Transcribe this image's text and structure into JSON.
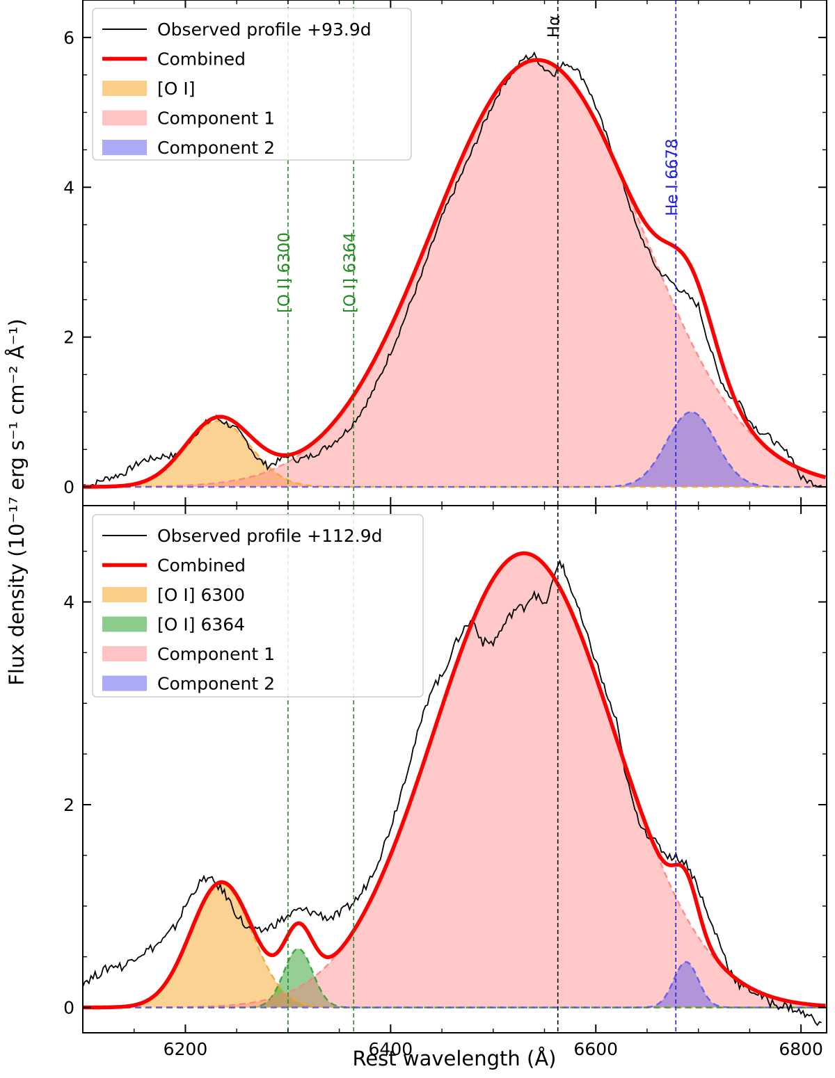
{
  "figure": {
    "xlabel": "Rest wavelength (Å)",
    "ylabel": "Flux density (10⁻¹⁷ erg s⁻¹ cm⁻² Å⁻¹)"
  },
  "colors": {
    "observed": "#000000",
    "combined": "#ff0000",
    "oi": "#f5a623",
    "oi6364": "#2ca02c",
    "comp1": "#ff7f7f",
    "comp2": "#5555ee",
    "ann_oi": "#228b22",
    "ann_h": "#000000",
    "ann_he": "#2222dd"
  },
  "chart_data": [
    {
      "type": "line",
      "panel": "top",
      "xlim": [
        6100,
        6825
      ],
      "ylim": [
        -0.25,
        6.5
      ],
      "xticks": [
        6200,
        6400,
        6600,
        6800
      ],
      "xtick_labels": [
        "6200",
        "6400",
        "6600",
        "6800"
      ],
      "yticks": [
        0,
        2,
        4,
        6
      ],
      "ytick_labels": [
        "0",
        "2",
        "4",
        "6"
      ],
      "legend": [
        "Observed profile +93.9d",
        "Combined",
        "[O I]",
        "Component 1",
        "Component 2"
      ],
      "annotations": [
        {
          "x": 6300,
          "label": "[O I] 6300",
          "kind": "oi"
        },
        {
          "x": 6364,
          "label": "[O I] 6364",
          "kind": "oi"
        },
        {
          "x": 6563,
          "label": "Hα",
          "kind": "h"
        },
        {
          "x": 6678,
          "label": "He I 6678",
          "kind": "he"
        }
      ],
      "components": [
        {
          "name": "[O I]",
          "kind": "oi",
          "amp": 0.88,
          "center": 6232,
          "sigma": 32
        },
        {
          "name": "Component 1",
          "kind": "comp1",
          "amp": 5.7,
          "center": 6543,
          "sigma": 102
        },
        {
          "name": "Component 2",
          "kind": "comp2",
          "amp": 1.0,
          "center": 6693,
          "sigma": 24
        }
      ],
      "observed": {
        "x": [
          6100,
          6110,
          6120,
          6130,
          6140,
          6150,
          6160,
          6170,
          6180,
          6190,
          6200,
          6210,
          6220,
          6230,
          6240,
          6250,
          6260,
          6270,
          6280,
          6290,
          6300,
          6310,
          6320,
          6330,
          6340,
          6350,
          6360,
          6370,
          6380,
          6390,
          6400,
          6410,
          6420,
          6430,
          6440,
          6450,
          6460,
          6470,
          6480,
          6490,
          6500,
          6510,
          6520,
          6530,
          6540,
          6550,
          6560,
          6570,
          6580,
          6590,
          6600,
          6610,
          6620,
          6630,
          6640,
          6650,
          6660,
          6670,
          6680,
          6690,
          6700,
          6710,
          6720,
          6730,
          6740,
          6750,
          6760,
          6770,
          6780,
          6790,
          6800,
          6810,
          6820
        ],
        "y": [
          0.02,
          0.03,
          0.1,
          0.14,
          0.18,
          0.28,
          0.36,
          0.38,
          0.42,
          0.41,
          0.55,
          0.72,
          0.85,
          0.92,
          0.85,
          0.76,
          0.6,
          0.38,
          0.28,
          0.34,
          0.42,
          0.36,
          0.4,
          0.47,
          0.55,
          0.66,
          0.79,
          0.98,
          1.2,
          1.48,
          1.8,
          2.12,
          2.48,
          2.82,
          3.22,
          3.6,
          3.9,
          4.2,
          4.5,
          4.82,
          5.12,
          5.38,
          5.55,
          5.72,
          5.76,
          5.58,
          5.52,
          5.66,
          5.6,
          5.4,
          5.08,
          4.7,
          4.32,
          3.9,
          3.45,
          3.18,
          2.9,
          2.78,
          2.66,
          2.54,
          2.42,
          1.92,
          1.48,
          1.22,
          1.14,
          0.88,
          0.74,
          0.66,
          0.52,
          0.42,
          0.12,
          0.06,
          0.02
        ]
      }
    },
    {
      "type": "line",
      "panel": "bottom",
      "xlim": [
        6100,
        6825
      ],
      "ylim": [
        -0.25,
        4.95
      ],
      "xticks": [
        6200,
        6400,
        6600,
        6800
      ],
      "xtick_labels": [
        "6200",
        "6400",
        "6600",
        "6800"
      ],
      "yticks": [
        0,
        2,
        4
      ],
      "ytick_labels": [
        "0",
        "2",
        "4"
      ],
      "legend": [
        "Observed profile +112.9d",
        "Combined",
        "[O I] 6300",
        "[O I] 6364",
        "Component 1",
        "Component 2"
      ],
      "annotations": [
        {
          "x": 6300,
          "label": "",
          "kind": "oi"
        },
        {
          "x": 6364,
          "label": "",
          "kind": "oi"
        },
        {
          "x": 6563,
          "label": "",
          "kind": "h"
        },
        {
          "x": 6678,
          "label": "",
          "kind": "he"
        }
      ],
      "components": [
        {
          "name": "[O I] 6300",
          "kind": "oi",
          "amp": 1.22,
          "center": 6235,
          "sigma": 30
        },
        {
          "name": "[O I] 6364",
          "kind": "oi6364",
          "amp": 0.58,
          "center": 6310,
          "sigma": 14
        },
        {
          "name": "Component 1",
          "kind": "comp1",
          "amp": 4.48,
          "center": 6530,
          "sigma": 88
        },
        {
          "name": "Component 2",
          "kind": "comp2",
          "amp": 0.45,
          "center": 6688,
          "sigma": 12
        }
      ],
      "observed": {
        "x": [
          6100,
          6110,
          6120,
          6130,
          6140,
          6150,
          6160,
          6170,
          6180,
          6190,
          6200,
          6210,
          6220,
          6230,
          6240,
          6250,
          6260,
          6270,
          6280,
          6290,
          6300,
          6310,
          6320,
          6330,
          6340,
          6350,
          6360,
          6370,
          6380,
          6390,
          6400,
          6410,
          6420,
          6430,
          6440,
          6450,
          6460,
          6470,
          6480,
          6490,
          6500,
          6510,
          6520,
          6530,
          6540,
          6550,
          6560,
          6565,
          6570,
          6580,
          6590,
          6600,
          6610,
          6620,
          6630,
          6640,
          6650,
          6660,
          6670,
          6680,
          6690,
          6700,
          6710,
          6720,
          6730,
          6740,
          6750,
          6760,
          6770,
          6780,
          6790,
          6800,
          6810,
          6820
        ],
        "y": [
          0.25,
          0.3,
          0.36,
          0.42,
          0.4,
          0.5,
          0.55,
          0.6,
          0.68,
          0.8,
          1.0,
          1.18,
          1.28,
          1.22,
          1.1,
          0.92,
          0.78,
          0.74,
          0.78,
          0.84,
          0.9,
          0.96,
          0.95,
          0.92,
          0.88,
          0.92,
          1.0,
          1.1,
          1.28,
          1.5,
          1.78,
          2.12,
          2.48,
          2.82,
          3.16,
          3.26,
          3.52,
          3.72,
          3.82,
          3.6,
          3.6,
          3.76,
          3.92,
          3.95,
          4.1,
          3.95,
          4.25,
          4.42,
          4.28,
          4.02,
          3.7,
          3.42,
          3.1,
          2.82,
          2.25,
          1.88,
          1.72,
          1.6,
          1.5,
          1.48,
          1.4,
          1.18,
          0.88,
          0.66,
          0.38,
          0.22,
          0.18,
          0.12,
          0.05,
          0.02,
          0.0,
          -0.05,
          -0.1,
          -0.15
        ]
      }
    }
  ]
}
